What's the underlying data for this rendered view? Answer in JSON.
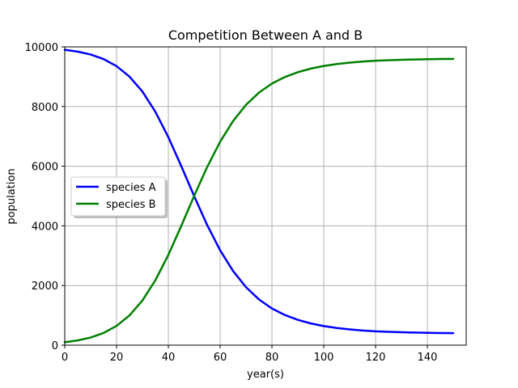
{
  "chart_data": {
    "type": "line",
    "title": "Competition Between A and B",
    "xlabel": "year(s)",
    "ylabel": "population",
    "xlim": [
      0,
      155
    ],
    "ylim": [
      0,
      10000
    ],
    "xticks": [
      0,
      20,
      40,
      60,
      80,
      100,
      120,
      140
    ],
    "yticks": [
      0,
      2000,
      4000,
      6000,
      8000,
      10000
    ],
    "grid": true,
    "legend_position": "center-left",
    "x": [
      0,
      5,
      10,
      15,
      20,
      25,
      30,
      35,
      40,
      45,
      50,
      55,
      60,
      65,
      70,
      75,
      80,
      85,
      90,
      95,
      100,
      105,
      110,
      115,
      120,
      125,
      130,
      135,
      140,
      145,
      150
    ],
    "series": [
      {
        "name": "species A",
        "color": "#0000ff",
        "values": [
          9901,
          9840,
          9744,
          9591,
          9355,
          9003,
          8500,
          7822,
          6973,
          6001,
          4989,
          4025,
          3180,
          2485,
          1941,
          1532,
          1230,
          1010,
          848,
          728,
          640,
          576,
          528,
          492,
          465,
          446,
          432,
          422,
          414,
          408,
          404
        ]
      },
      {
        "name": "species B",
        "color": "#008000",
        "values": [
          99,
          160,
          256,
          409,
          645,
          997,
          1500,
          2178,
          3027,
          3999,
          5011,
          5975,
          6820,
          7515,
          8059,
          8468,
          8770,
          8990,
          9152,
          9272,
          9360,
          9424,
          9472,
          9508,
          9535,
          9554,
          9568,
          9578,
          9586,
          9592,
          9596
        ]
      }
    ]
  }
}
